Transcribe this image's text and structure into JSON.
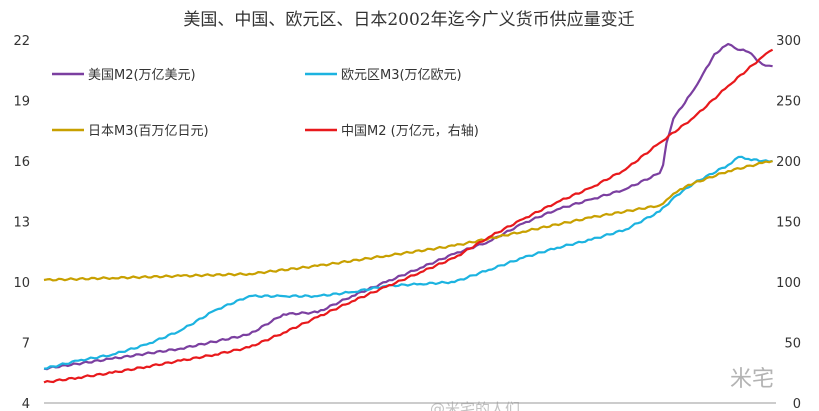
{
  "chart_data": {
    "type": "line",
    "title": "美国、中国、欧元区、日本2002年迄今广义货币供应量变迁",
    "xlabel": "",
    "ylabel": "",
    "x_range": [
      2002,
      2023.4
    ],
    "y_left": {
      "ylim": [
        4,
        22
      ],
      "ticks": [
        "4",
        "7",
        "10",
        "13",
        "16",
        "19",
        "22"
      ],
      "tick_values": [
        4,
        7,
        10,
        13,
        16,
        19,
        22
      ]
    },
    "y_right": {
      "ylim": [
        0,
        300
      ],
      "ticks": [
        "0",
        "50",
        "100",
        "150",
        "200",
        "250",
        "300"
      ],
      "tick_values": [
        0,
        50,
        100,
        150,
        200,
        250,
        300
      ]
    },
    "grid": false,
    "legend_position": "top-left, two columns",
    "series": [
      {
        "name": "美国M2(万亿美元)",
        "axis": "left",
        "color": "#7b3fa0",
        "x": [
          2002.0,
          2004.0,
          2006.0,
          2008.0,
          2009.0,
          2010.0,
          2011.0,
          2012.0,
          2013.0,
          2014.0,
          2015.0,
          2016.0,
          2017.0,
          2018.0,
          2019.0,
          2020.0,
          2020.1,
          2020.2,
          2020.4,
          2020.9,
          2021.2,
          2021.6,
          2022.0,
          2022.2,
          2022.6,
          2023.0,
          2023.3
        ],
        "values": [
          5.7,
          6.2,
          6.7,
          7.4,
          8.4,
          8.5,
          9.3,
          10.0,
          10.7,
          11.4,
          12.0,
          12.9,
          13.6,
          14.1,
          14.6,
          15.4,
          15.8,
          16.9,
          18.1,
          19.3,
          20.1,
          21.3,
          21.8,
          21.6,
          21.4,
          20.8,
          20.7
        ]
      },
      {
        "name": "欧元区M3(万亿欧元)",
        "axis": "left",
        "color": "#1cb3e0",
        "x": [
          2002.0,
          2003.0,
          2004.0,
          2005.0,
          2006.0,
          2007.0,
          2008.0,
          2009.0,
          2010.0,
          2011.0,
          2012.0,
          2013.0,
          2014.0,
          2015.0,
          2016.0,
          2017.0,
          2018.0,
          2019.0,
          2020.0,
          2020.5,
          2021.0,
          2022.0,
          2022.3,
          2022.6,
          2023.0,
          2023.3
        ],
        "values": [
          5.7,
          6.1,
          6.4,
          6.9,
          7.6,
          8.6,
          9.3,
          9.3,
          9.3,
          9.5,
          9.8,
          9.9,
          10.0,
          10.6,
          11.2,
          11.7,
          12.1,
          12.6,
          13.5,
          14.3,
          14.9,
          15.8,
          16.2,
          16.1,
          16.0,
          16.0
        ]
      },
      {
        "name": "日本M3(百万亿日元)",
        "axis": "left",
        "color": "#c8a000",
        "x": [
          2002.0,
          2004.0,
          2006.0,
          2008.0,
          2010.0,
          2012.0,
          2014.0,
          2016.0,
          2018.0,
          2020.0,
          2020.3,
          2020.6,
          2021.0,
          2022.0,
          2023.0,
          2023.3
        ],
        "values": [
          10.1,
          10.2,
          10.3,
          10.4,
          10.8,
          11.3,
          11.8,
          12.5,
          13.2,
          13.8,
          14.2,
          14.6,
          14.9,
          15.5,
          15.9,
          16.0
        ]
      },
      {
        "name": "中国M2 (万亿元，右轴)",
        "axis": "right",
        "color": "#e8191c",
        "x": [
          2002.0,
          2003.0,
          2004.0,
          2005.0,
          2006.0,
          2007.0,
          2008.0,
          2009.0,
          2010.0,
          2011.0,
          2012.0,
          2013.0,
          2014.0,
          2015.0,
          2016.0,
          2017.0,
          2018.0,
          2019.0,
          2020.0,
          2021.0,
          2022.0,
          2023.0,
          2023.3
        ],
        "values": [
          17,
          21,
          25,
          30,
          35,
          40,
          46,
          58,
          71,
          84,
          96,
          108,
          120,
          137,
          152,
          166,
          178,
          193,
          215,
          236,
          262,
          286,
          292
        ]
      }
    ]
  },
  "watermark": {
    "brand": "米宅",
    "caption": "@米宅的人们"
  }
}
